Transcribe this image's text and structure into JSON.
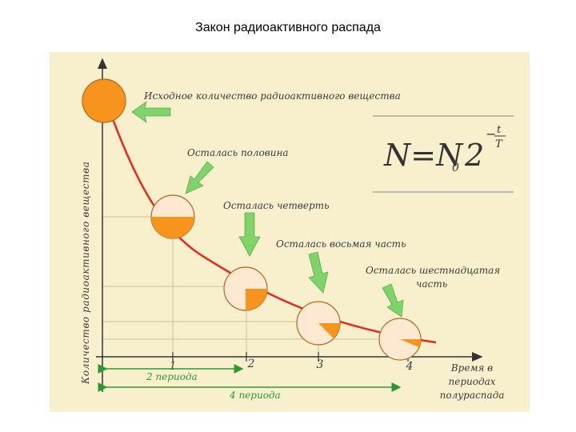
{
  "title": "Закон радиоактивного распада",
  "y_axis_label": "Количество радиоактивного вещества",
  "x_axis_label": [
    "Время в",
    "периодах",
    "полураспада"
  ],
  "ticks": [
    "1",
    "2",
    "3",
    "4"
  ],
  "labels": {
    "initial": "Исходное количество радиоактивного вещества",
    "half": "Осталась половина",
    "quarter": "Осталась четверть",
    "eighth": "Осталась восьмая часть",
    "sixteenth_line1": "Осталась шестнадцатая",
    "sixteenth_line2": "часть"
  },
  "periods": {
    "two": "2 периода",
    "four": "4 периода"
  },
  "formula": {
    "lhs": "N=N",
    "sub": "0",
    "base": "2",
    "exp_sign": "−",
    "exp_num": "t",
    "exp_den": "T"
  },
  "remaining_fractions": [
    1,
    0.5,
    0.25,
    0.125,
    0.0625
  ],
  "colors": {
    "fill": "#f7941d",
    "curve": "#e8281c",
    "arrow": "#7fd36a",
    "panel": "#f8f0cc"
  }
}
